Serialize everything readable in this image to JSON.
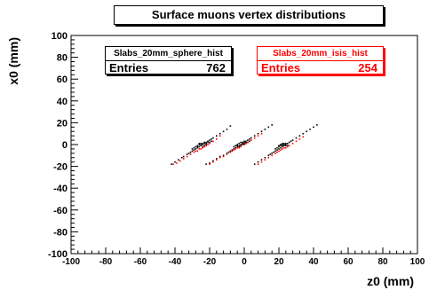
{
  "chart_data": {
    "type": "scatter",
    "title": "Surface muons vertex distributions",
    "xlabel": "z0 (mm)",
    "ylabel": "x0 (mm)",
    "xlim": [
      -100,
      100
    ],
    "ylim": [
      -100,
      100
    ],
    "xticks": [
      "-100",
      "-80",
      "-60",
      "-40",
      "-20",
      "0",
      "20",
      "40",
      "60",
      "80",
      "100"
    ],
    "yticks": [
      "100",
      "80",
      "60",
      "40",
      "20",
      "0",
      "-20",
      "-40",
      "-60",
      "-80",
      "-100"
    ],
    "series": [
      {
        "name": "Slabs_20mm_sphere_hist",
        "color": "#000000",
        "entries": "762",
        "points": [
          [
            -42,
            -18
          ],
          [
            -40,
            -16
          ],
          [
            -38,
            -14
          ],
          [
            -36,
            -12
          ],
          [
            -35,
            -11
          ],
          [
            -33,
            -9
          ],
          [
            -32,
            -8
          ],
          [
            -31,
            -7
          ],
          [
            -30,
            -6
          ],
          [
            -29,
            -5
          ],
          [
            -28,
            -4
          ],
          [
            -27,
            -3
          ],
          [
            -26,
            -2
          ],
          [
            -25,
            -1
          ],
          [
            -24,
            0
          ],
          [
            -23,
            1
          ],
          [
            -22,
            2
          ],
          [
            -21,
            3
          ],
          [
            -20,
            4
          ],
          [
            -19,
            5
          ],
          [
            -18,
            6
          ],
          [
            -16,
            8
          ],
          [
            -14,
            10
          ],
          [
            -12,
            12
          ],
          [
            -10,
            14
          ],
          [
            -8,
            17
          ],
          [
            -27,
            -1
          ],
          [
            -26,
            0
          ],
          [
            -25,
            1
          ],
          [
            -24,
            -2
          ],
          [
            -23,
            -1
          ],
          [
            -22,
            0
          ],
          [
            -28,
            -2
          ],
          [
            -29,
            -3
          ],
          [
            -30,
            -4
          ],
          [
            -21,
            2
          ],
          [
            -20,
            2
          ],
          [
            -19,
            3
          ],
          [
            -24,
            1
          ],
          [
            -25,
            0
          ],
          [
            -22,
            1
          ],
          [
            -23,
            2
          ],
          [
            -26,
            1
          ],
          [
            -27,
            -2
          ],
          [
            -22,
            -18
          ],
          [
            -20,
            -17
          ],
          [
            -18,
            -15
          ],
          [
            -16,
            -13
          ],
          [
            -14,
            -11
          ],
          [
            -12,
            -10
          ],
          [
            -10,
            -8
          ],
          [
            -9,
            -7
          ],
          [
            -8,
            -6
          ],
          [
            -7,
            -5
          ],
          [
            -6,
            -4
          ],
          [
            -5,
            -3
          ],
          [
            -4,
            -2
          ],
          [
            -3,
            -1
          ],
          [
            -2,
            0
          ],
          [
            -1,
            1
          ],
          [
            0,
            2
          ],
          [
            1,
            3
          ],
          [
            2,
            4
          ],
          [
            3,
            5
          ],
          [
            4,
            6
          ],
          [
            6,
            8
          ],
          [
            8,
            10
          ],
          [
            10,
            12
          ],
          [
            12,
            14
          ],
          [
            14,
            16
          ],
          [
            16,
            18
          ],
          [
            -4,
            0
          ],
          [
            -3,
            1
          ],
          [
            -2,
            2
          ],
          [
            -1,
            0
          ],
          [
            0,
            1
          ],
          [
            1,
            2
          ],
          [
            2,
            2
          ],
          [
            -5,
            -1
          ],
          [
            -6,
            -2
          ],
          [
            -2,
            -1
          ],
          [
            0,
            0
          ],
          [
            1,
            1
          ],
          [
            3,
            3
          ],
          [
            -1,
            2
          ],
          [
            -3,
            -2
          ],
          [
            -4,
            -1
          ],
          [
            0,
            3
          ],
          [
            6,
            -18
          ],
          [
            8,
            -16
          ],
          [
            10,
            -14
          ],
          [
            12,
            -12
          ],
          [
            14,
            -10
          ],
          [
            15,
            -9
          ],
          [
            16,
            -8
          ],
          [
            17,
            -7
          ],
          [
            18,
            -6
          ],
          [
            19,
            -5
          ],
          [
            20,
            -4
          ],
          [
            21,
            -3
          ],
          [
            22,
            -2
          ],
          [
            23,
            -1
          ],
          [
            24,
            0
          ],
          [
            25,
            1
          ],
          [
            26,
            2
          ],
          [
            27,
            3
          ],
          [
            28,
            4
          ],
          [
            30,
            6
          ],
          [
            32,
            8
          ],
          [
            34,
            10
          ],
          [
            36,
            12
          ],
          [
            38,
            14
          ],
          [
            40,
            16
          ],
          [
            42,
            18
          ],
          [
            20,
            -2
          ],
          [
            21,
            -1
          ],
          [
            22,
            0
          ],
          [
            23,
            1
          ],
          [
            24,
            -1
          ],
          [
            19,
            -3
          ],
          [
            18,
            -4
          ],
          [
            22,
            1
          ],
          [
            21,
            0
          ],
          [
            23,
            0
          ],
          [
            25,
            -1
          ],
          [
            20,
            -1
          ],
          [
            24,
            1
          ],
          [
            22,
            -1
          ]
        ]
      },
      {
        "name": "Slabs_20mm_isis_hist",
        "color": "#ff0000",
        "entries": "254",
        "points": [
          [
            -41,
            -18
          ],
          [
            -39,
            -17
          ],
          [
            -37,
            -15
          ],
          [
            -35,
            -13
          ],
          [
            -33,
            -11
          ],
          [
            -31,
            -9
          ],
          [
            -29,
            -7
          ],
          [
            -27,
            -6
          ],
          [
            -26,
            -4
          ],
          [
            -24,
            -3
          ],
          [
            -22,
            -1
          ],
          [
            -20,
            1
          ],
          [
            -18,
            3
          ],
          [
            -16,
            5
          ],
          [
            -14,
            8
          ],
          [
            -28,
            -6
          ],
          [
            -25,
            -4
          ],
          [
            -23,
            -2
          ],
          [
            -21,
            0
          ],
          [
            -20,
            -18
          ],
          [
            -18,
            -16
          ],
          [
            -16,
            -14
          ],
          [
            -14,
            -12
          ],
          [
            -12,
            -11
          ],
          [
            -10,
            -9
          ],
          [
            -8,
            -7
          ],
          [
            -6,
            -5
          ],
          [
            -4,
            -3
          ],
          [
            -2,
            -2
          ],
          [
            0,
            0
          ],
          [
            2,
            2
          ],
          [
            4,
            4
          ],
          [
            6,
            6
          ],
          [
            8,
            8
          ],
          [
            10,
            10
          ],
          [
            -7,
            -6
          ],
          [
            -3,
            -3
          ],
          [
            1,
            1
          ],
          [
            -5,
            -4
          ],
          [
            8,
            -18
          ],
          [
            10,
            -16
          ],
          [
            12,
            -14
          ],
          [
            14,
            -12
          ],
          [
            16,
            -10
          ],
          [
            18,
            -8
          ],
          [
            20,
            -6
          ],
          [
            22,
            -4
          ],
          [
            24,
            -3
          ],
          [
            26,
            -1
          ],
          [
            28,
            1
          ],
          [
            30,
            3
          ],
          [
            32,
            5
          ],
          [
            34,
            7
          ],
          [
            19,
            -7
          ],
          [
            21,
            -5
          ],
          [
            23,
            -3
          ],
          [
            25,
            -2
          ]
        ]
      }
    ]
  }
}
